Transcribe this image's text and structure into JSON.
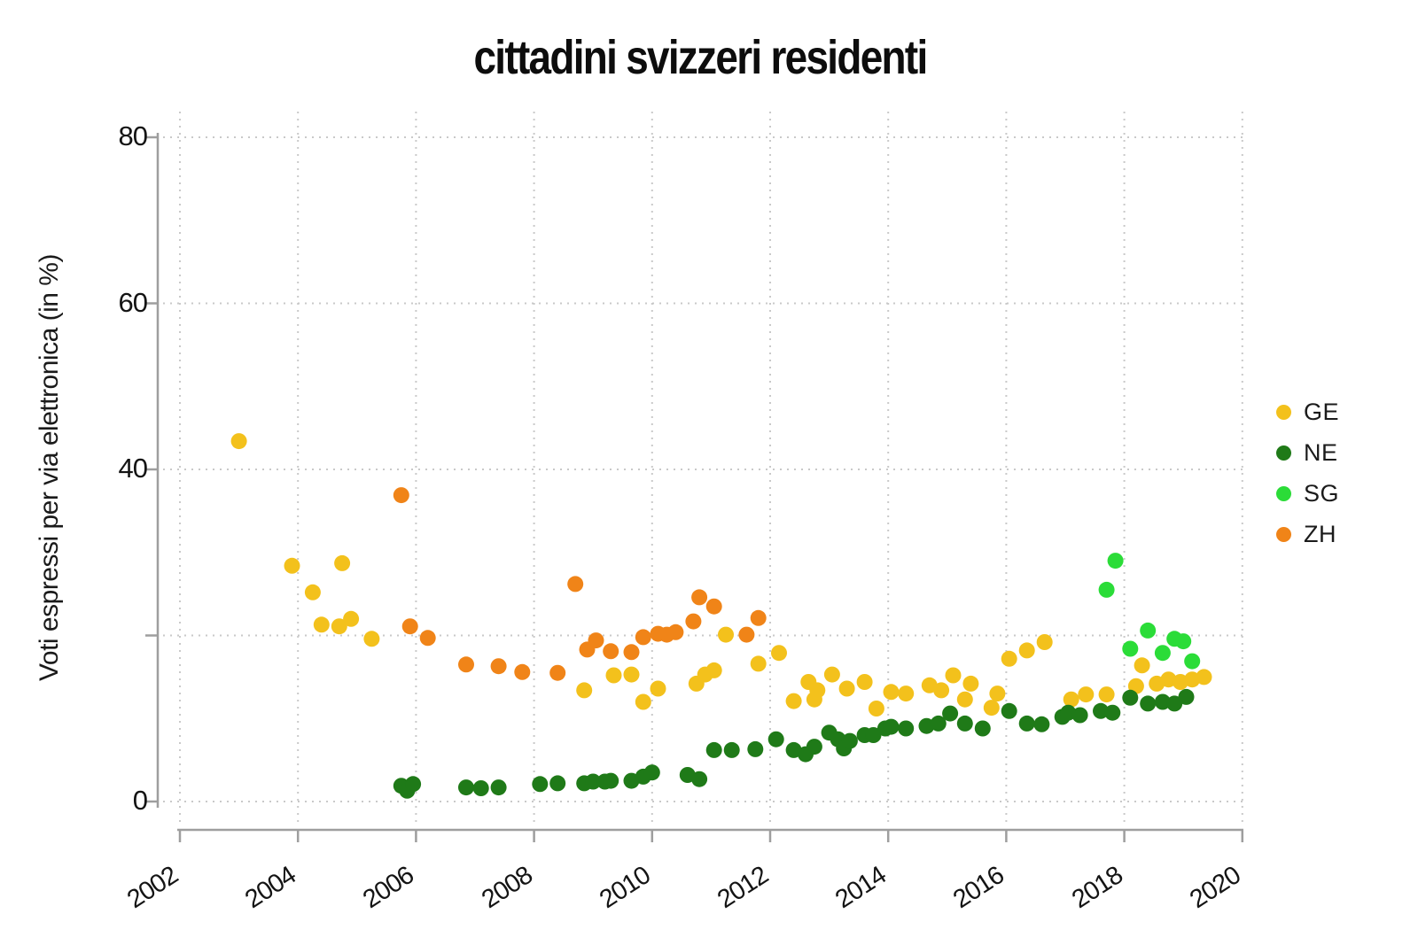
{
  "title": "cittadini svizzeri residenti",
  "y_axis": {
    "title": "Voti espressi per via elettronica (in %)",
    "tick_values": [
      80,
      60,
      40,
      20,
      0
    ],
    "tick_labels": [
      "80",
      "60",
      "40",
      "",
      "0"
    ]
  },
  "x_axis": {
    "tick_values": [
      2002,
      2004,
      2006,
      2008,
      2010,
      2012,
      2014,
      2016,
      2018,
      2020
    ],
    "tick_labels": [
      "2002",
      "2004",
      "2006",
      "2008",
      "2010",
      "2012",
      "2014",
      "2016",
      "2018",
      "2020"
    ]
  },
  "legend": {
    "items": [
      {
        "label": "GE",
        "color": "#f3c11c"
      },
      {
        "label": "NE",
        "color": "#1f7a18"
      },
      {
        "label": "SG",
        "color": "#2bdc38"
      },
      {
        "label": "ZH",
        "color": "#f08418"
      }
    ]
  },
  "chart_data": {
    "type": "scatter",
    "title": "cittadini svizzeri residenti",
    "xlabel": "",
    "ylabel": "Voti espressi per via elettronica (in %)",
    "xlim": [
      2001.6,
      2020.4
    ],
    "ylim": [
      0,
      80
    ],
    "x_ticks": [
      2002,
      2004,
      2006,
      2008,
      2010,
      2012,
      2014,
      2016,
      2018,
      2020
    ],
    "y_ticks": [
      0,
      20,
      40,
      60,
      80
    ],
    "grid": "dotted",
    "legend_position": "right",
    "series": [
      {
        "name": "GE",
        "color": "#f3c11c",
        "points": [
          [
            2003.0,
            43.4
          ],
          [
            2003.9,
            28.4
          ],
          [
            2004.25,
            25.2
          ],
          [
            2004.4,
            21.3
          ],
          [
            2004.7,
            21.1
          ],
          [
            2004.75,
            28.7
          ],
          [
            2004.9,
            22.0
          ],
          [
            2005.25,
            19.6
          ],
          [
            2008.85,
            13.4
          ],
          [
            2009.35,
            15.2
          ],
          [
            2009.65,
            15.3
          ],
          [
            2009.85,
            12.0
          ],
          [
            2010.1,
            13.6
          ],
          [
            2010.75,
            14.2
          ],
          [
            2010.9,
            15.3
          ],
          [
            2011.05,
            15.8
          ],
          [
            2011.25,
            20.1
          ],
          [
            2011.8,
            16.6
          ],
          [
            2012.15,
            17.9
          ],
          [
            2012.4,
            12.1
          ],
          [
            2012.65,
            14.4
          ],
          [
            2012.75,
            12.3
          ],
          [
            2012.8,
            13.4
          ],
          [
            2013.05,
            15.3
          ],
          [
            2013.3,
            13.6
          ],
          [
            2013.6,
            14.4
          ],
          [
            2013.8,
            11.2
          ],
          [
            2014.05,
            13.2
          ],
          [
            2014.3,
            13.0
          ],
          [
            2014.7,
            14.0
          ],
          [
            2014.9,
            13.4
          ],
          [
            2015.1,
            15.2
          ],
          [
            2015.3,
            12.3
          ],
          [
            2015.4,
            14.2
          ],
          [
            2015.75,
            11.3
          ],
          [
            2015.85,
            13.0
          ],
          [
            2016.05,
            17.2
          ],
          [
            2016.35,
            18.2
          ],
          [
            2016.65,
            19.2
          ],
          [
            2017.1,
            12.3
          ],
          [
            2017.35,
            12.9
          ],
          [
            2017.7,
            12.9
          ],
          [
            2018.2,
            13.9
          ],
          [
            2018.3,
            16.4
          ],
          [
            2018.55,
            14.2
          ],
          [
            2018.75,
            14.7
          ],
          [
            2018.95,
            14.4
          ],
          [
            2019.15,
            14.7
          ],
          [
            2019.35,
            15.0
          ]
        ]
      },
      {
        "name": "NE",
        "color": "#1f7a18",
        "points": [
          [
            2005.75,
            1.9
          ],
          [
            2005.85,
            1.3
          ],
          [
            2005.95,
            2.1
          ],
          [
            2006.85,
            1.7
          ],
          [
            2007.1,
            1.6
          ],
          [
            2007.4,
            1.7
          ],
          [
            2008.1,
            2.1
          ],
          [
            2008.4,
            2.2
          ],
          [
            2008.85,
            2.2
          ],
          [
            2009.0,
            2.4
          ],
          [
            2009.2,
            2.4
          ],
          [
            2009.3,
            2.5
          ],
          [
            2009.65,
            2.5
          ],
          [
            2009.85,
            3.0
          ],
          [
            2010.0,
            3.5
          ],
          [
            2010.6,
            3.2
          ],
          [
            2010.8,
            2.7
          ],
          [
            2011.05,
            6.2
          ],
          [
            2011.35,
            6.2
          ],
          [
            2011.75,
            6.3
          ],
          [
            2012.1,
            7.5
          ],
          [
            2012.4,
            6.2
          ],
          [
            2012.6,
            5.7
          ],
          [
            2012.75,
            6.6
          ],
          [
            2013.0,
            8.3
          ],
          [
            2013.15,
            7.5
          ],
          [
            2013.25,
            6.4
          ],
          [
            2013.35,
            7.3
          ],
          [
            2013.6,
            8.0
          ],
          [
            2013.75,
            8.0
          ],
          [
            2013.95,
            8.8
          ],
          [
            2014.05,
            9.0
          ],
          [
            2014.3,
            8.8
          ],
          [
            2014.65,
            9.1
          ],
          [
            2014.85,
            9.4
          ],
          [
            2015.05,
            10.6
          ],
          [
            2015.3,
            9.4
          ],
          [
            2015.6,
            8.8
          ],
          [
            2016.05,
            10.9
          ],
          [
            2016.35,
            9.4
          ],
          [
            2016.6,
            9.3
          ],
          [
            2016.95,
            10.2
          ],
          [
            2017.05,
            10.7
          ],
          [
            2017.25,
            10.4
          ],
          [
            2017.6,
            10.9
          ],
          [
            2017.8,
            10.7
          ],
          [
            2018.1,
            12.5
          ],
          [
            2018.4,
            11.8
          ],
          [
            2018.65,
            12.0
          ],
          [
            2018.85,
            11.8
          ],
          [
            2019.05,
            12.6
          ]
        ]
      },
      {
        "name": "SG",
        "color": "#2bdc38",
        "points": [
          [
            2017.7,
            25.5
          ],
          [
            2017.85,
            29.0
          ],
          [
            2018.1,
            18.4
          ],
          [
            2018.4,
            20.6
          ],
          [
            2018.65,
            17.9
          ],
          [
            2018.85,
            19.6
          ],
          [
            2019.0,
            19.3
          ],
          [
            2019.15,
            16.9
          ]
        ]
      },
      {
        "name": "ZH",
        "color": "#f08418",
        "points": [
          [
            2005.75,
            36.9
          ],
          [
            2005.9,
            21.1
          ],
          [
            2006.2,
            19.7
          ],
          [
            2006.85,
            16.5
          ],
          [
            2007.4,
            16.3
          ],
          [
            2007.8,
            15.6
          ],
          [
            2008.4,
            15.5
          ],
          [
            2008.7,
            26.2
          ],
          [
            2008.9,
            18.3
          ],
          [
            2009.05,
            19.4
          ],
          [
            2009.3,
            18.1
          ],
          [
            2009.65,
            18.0
          ],
          [
            2009.85,
            19.8
          ],
          [
            2010.1,
            20.2
          ],
          [
            2010.25,
            20.1
          ],
          [
            2010.4,
            20.4
          ],
          [
            2010.7,
            21.7
          ],
          [
            2010.8,
            24.6
          ],
          [
            2011.05,
            23.5
          ],
          [
            2011.6,
            20.1
          ],
          [
            2011.8,
            22.1
          ]
        ]
      }
    ]
  }
}
